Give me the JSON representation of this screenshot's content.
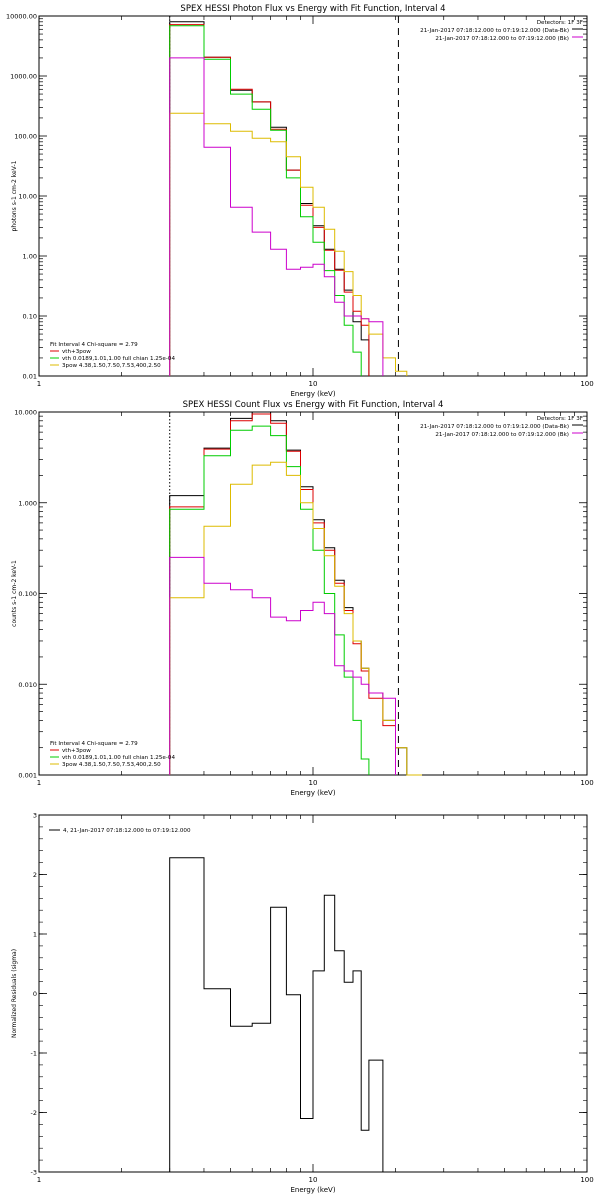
{
  "chart_data": [
    {
      "type": "line",
      "title": "SPEX HESSI Photon Flux vs Energy with Fit Function, Interval 4",
      "xlabel": "Energy (keV)",
      "ylabel": "photons s-1 cm-2 keV-1",
      "xscale": "log",
      "yscale": "log",
      "xlim": [
        1,
        100
      ],
      "ylim": [
        0.01,
        10000
      ],
      "xticks": [
        {
          "v": 1,
          "label": "1"
        },
        {
          "v": 10,
          "label": "10"
        },
        {
          "v": 100,
          "label": "100"
        }
      ],
      "yticks": [
        {
          "v": 0.01,
          "label": "0.01"
        },
        {
          "v": 0.1,
          "label": "0.10"
        },
        {
          "v": 1,
          "label": "1.00"
        },
        {
          "v": 10,
          "label": "10.00"
        },
        {
          "v": 100,
          "label": "100.00"
        },
        {
          "v": 1000,
          "label": "1000.00"
        },
        {
          "v": 10000,
          "label": "10000.00"
        }
      ],
      "top_right": [
        "Detectors: 1F 3F",
        "21-Jan-2017 07:18:12.000 to 07:19:12.000 (Data-Bk)",
        "21-Jan-2017 07:18:12.000 to 07:19:12.000 (Bk)"
      ],
      "fit_label": "Fit Interval 4   Chi-square = 2.79",
      "legend_placement": "bottom-left",
      "legend": [
        {
          "label": "vth+3pow",
          "color": "#dd0000"
        },
        {
          "label": "vth 0.0189,1.01,1.00  full chian 1.25e-04",
          "color": "#00cc00"
        },
        {
          "label": "3pow 4.38,1.50,7.50,7.53,400,2.50",
          "color": "#ddbb00"
        }
      ],
      "vlines": [
        {
          "x": 3.0,
          "style": "dotted",
          "color": "#000000"
        },
        {
          "x": 20.5,
          "style": "dashed",
          "color": "#000000"
        }
      ],
      "bin_edges": [
        3.0,
        4.0,
        5.0,
        6.0,
        7.0,
        8.0,
        9.0,
        10.0,
        11.0,
        12.0,
        13.0,
        14.0,
        15.0,
        16.0,
        18.0,
        20.0,
        22.0,
        25.0
      ],
      "series": [
        {
          "color": "#000000",
          "values": [
            8000,
            2050,
            580,
            370,
            140,
            27,
            7.5,
            3.2,
            1.3,
            0.6,
            0.27,
            0.08,
            0.04,
            null,
            null,
            null,
            null
          ]
        },
        {
          "color": "#dd0000",
          "values": [
            7200,
            2050,
            600,
            370,
            130,
            27,
            7.0,
            3.0,
            1.25,
            0.58,
            0.25,
            0.12,
            0.07,
            null,
            null,
            null,
            null
          ]
        },
        {
          "color": "#00cc00",
          "values": [
            6900,
            1900,
            500,
            280,
            125,
            20,
            4.5,
            1.7,
            0.57,
            0.22,
            0.07,
            0.025,
            null,
            null,
            null,
            null,
            null
          ]
        },
        {
          "color": "#ddbb00",
          "values": [
            240,
            160,
            120,
            92,
            80,
            45,
            14,
            6.5,
            2.8,
            1.2,
            0.55,
            0.22,
            0.09,
            0.05,
            0.02,
            0.012,
            null
          ]
        },
        {
          "color": "#cc00cc",
          "values": [
            2000,
            65,
            6.5,
            2.5,
            1.3,
            0.6,
            0.65,
            0.73,
            0.45,
            0.17,
            0.1,
            0.1,
            0.09,
            0.08,
            null,
            null,
            null
          ]
        }
      ]
    },
    {
      "type": "line",
      "title": "SPEX HESSI Count Flux vs Energy with Fit Function, Interval 4",
      "xlabel": "Energy (keV)",
      "ylabel": "counts s-1 cm-2 keV-1",
      "xscale": "log",
      "yscale": "log",
      "xlim": [
        1,
        100
      ],
      "ylim": [
        0.001,
        10
      ],
      "xticks": [
        {
          "v": 1,
          "label": "1"
        },
        {
          "v": 10,
          "label": "10"
        },
        {
          "v": 100,
          "label": "100"
        }
      ],
      "yticks": [
        {
          "v": 0.001,
          "label": "0.001"
        },
        {
          "v": 0.01,
          "label": "0.010"
        },
        {
          "v": 0.1,
          "label": "0.100"
        },
        {
          "v": 1,
          "label": "1.000"
        },
        {
          "v": 10,
          "label": "10.000"
        }
      ],
      "top_right": [
        "Detectors: 1F 3F",
        "21-Jan-2017 07:18:12.000 to 07:19:12.000 (Data-Bk)",
        "21-Jan-2017 07:18:12.000 to 07:19:12.000 (Bk)"
      ],
      "fit_label": "Fit Interval 4   Chi-square = 2.79",
      "legend_placement": "bottom-left",
      "legend": [
        {
          "label": "vth+3pow",
          "color": "#dd0000"
        },
        {
          "label": "vth 0.0189,1.01,1.00  full chian 1.25e-04",
          "color": "#00cc00"
        },
        {
          "label": "3pow 4.38,1.50,7.50,7.53,400,2.50",
          "color": "#ddbb00"
        }
      ],
      "vlines": [
        {
          "x": 3.0,
          "style": "dotted",
          "color": "#000000"
        },
        {
          "x": 20.5,
          "style": "dashed",
          "color": "#000000"
        }
      ],
      "bin_edges": [
        3.0,
        4.0,
        5.0,
        6.0,
        7.0,
        8.0,
        9.0,
        10.0,
        11.0,
        12.0,
        13.0,
        14.0,
        15.0,
        16.0,
        18.0,
        20.0,
        22.0,
        25.0
      ],
      "series": [
        {
          "color": "#000000",
          "values": [
            1.2,
            4.0,
            8.5,
            10.0,
            8.0,
            3.8,
            1.5,
            0.65,
            0.32,
            0.14,
            0.07,
            0.03,
            0.015,
            0.008,
            0.004,
            0.002,
            null
          ]
        },
        {
          "color": "#dd0000",
          "values": [
            0.9,
            3.9,
            8.0,
            9.5,
            7.5,
            3.7,
            1.4,
            0.6,
            0.3,
            0.13,
            0.065,
            0.028,
            0.014,
            0.007,
            0.0035,
            null,
            null
          ]
        },
        {
          "color": "#00cc00",
          "values": [
            0.85,
            3.3,
            6.3,
            7.0,
            5.5,
            2.5,
            0.85,
            0.3,
            0.1,
            0.035,
            0.012,
            0.004,
            0.0015,
            null,
            null,
            null,
            null
          ]
        },
        {
          "color": "#ddbb00",
          "values": [
            0.09,
            0.55,
            1.6,
            2.6,
            2.8,
            2.0,
            1.0,
            0.52,
            0.26,
            0.12,
            0.06,
            0.03,
            0.015,
            0.008,
            0.004,
            0.002,
            0.001
          ]
        },
        {
          "color": "#cc00cc",
          "values": [
            0.25,
            0.13,
            0.11,
            0.09,
            0.055,
            0.05,
            0.065,
            0.08,
            0.06,
            0.016,
            0.014,
            0.012,
            0.01,
            0.008,
            0.007,
            null,
            null
          ]
        }
      ]
    },
    {
      "type": "line",
      "title": "",
      "xlabel": "Energy (keV)",
      "ylabel": "Normalized Residuals (sigma)",
      "xscale": "log",
      "yscale": "linear",
      "xlim": [
        1,
        100
      ],
      "ylim": [
        -3,
        3
      ],
      "xticks": [
        {
          "v": 1,
          "label": "1"
        },
        {
          "v": 10,
          "label": "10"
        },
        {
          "v": 100,
          "label": "100"
        }
      ],
      "yticks": [
        {
          "v": -3,
          "label": "-3"
        },
        {
          "v": -2,
          "label": "-2"
        },
        {
          "v": -1,
          "label": "-1"
        },
        {
          "v": 0,
          "label": "0"
        },
        {
          "v": 1,
          "label": "1"
        },
        {
          "v": 2,
          "label": "2"
        },
        {
          "v": 3,
          "label": "3"
        }
      ],
      "legend_placement": "top-left",
      "legend": [
        {
          "label": "4, 21-Jan-2017 07:18:12.000 to 07:19:12.000",
          "color": "#000000"
        }
      ],
      "bin_edges": [
        3.0,
        4.0,
        5.0,
        6.0,
        7.0,
        8.0,
        9.0,
        10.0,
        11.0,
        12.0,
        13.0,
        14.0,
        15.0,
        16.0,
        18.0,
        20.0
      ],
      "series": [
        {
          "color": "#000000",
          "values": [
            2.28,
            0.08,
            -0.55,
            -0.5,
            1.45,
            -0.02,
            -2.1,
            0.38,
            1.65,
            0.72,
            0.19,
            0.38,
            -2.3,
            -1.12,
            -3.0
          ]
        }
      ]
    }
  ]
}
